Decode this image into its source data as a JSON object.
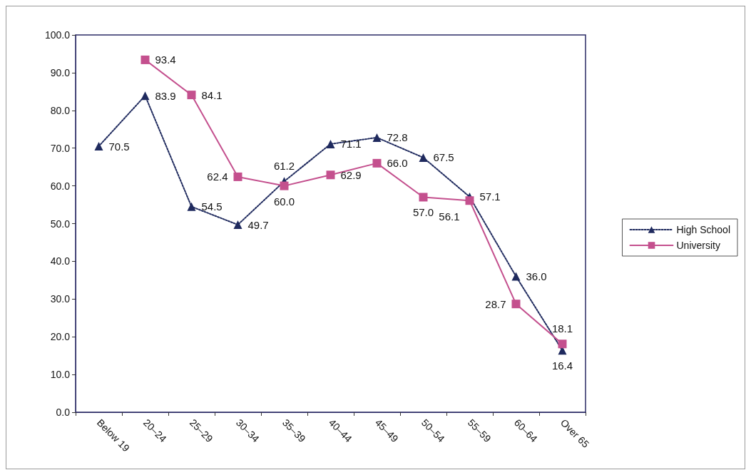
{
  "chart_data": {
    "type": "line",
    "categories": [
      "Below 19",
      "20–24",
      "25–29",
      "30–34",
      "35–39",
      "40–44",
      "45–49",
      "50–54",
      "55–59",
      "60–64",
      "Over 65"
    ],
    "series": [
      {
        "name": "High School",
        "color": "#1f2a5e",
        "marker": "triangle",
        "line_style": "dotted",
        "values": [
          70.5,
          83.9,
          54.5,
          49.7,
          61.2,
          71.1,
          72.8,
          67.5,
          57.1,
          36.0,
          16.4
        ],
        "value_labels": [
          "70.5",
          "83.9",
          "54.5",
          "49.7",
          "61.2",
          "71.1",
          "72.8",
          "67.5",
          "57.1",
          "36.0",
          "16.4"
        ]
      },
      {
        "name": "University",
        "color": "#c4508e",
        "marker": "square",
        "line_style": "solid",
        "values": [
          null,
          93.4,
          84.1,
          62.4,
          60.0,
          62.9,
          66.0,
          57.0,
          56.1,
          28.7,
          18.1
        ],
        "value_labels": [
          null,
          "93.4",
          "84.1",
          "62.4",
          "60.0",
          "62.9",
          "66.0",
          "57.0",
          "56.1",
          "28.7",
          "18.1"
        ]
      }
    ],
    "ylim": [
      0,
      100
    ],
    "yticks": [
      {
        "value": 0,
        "label": "0.0"
      },
      {
        "value": 10,
        "label": "10.0"
      },
      {
        "value": 20,
        "label": "20.0"
      },
      {
        "value": 30,
        "label": "30.0"
      },
      {
        "value": 40,
        "label": "40.0"
      },
      {
        "value": 50,
        "label": "50.0"
      },
      {
        "value": 60,
        "label": "60.0"
      },
      {
        "value": 70,
        "label": "70.0"
      },
      {
        "value": 80,
        "label": "80.0"
      },
      {
        "value": 90,
        "label": "90.0"
      },
      {
        "value": 100,
        "label": "100.0"
      }
    ],
    "grid": false,
    "legend": "right"
  }
}
